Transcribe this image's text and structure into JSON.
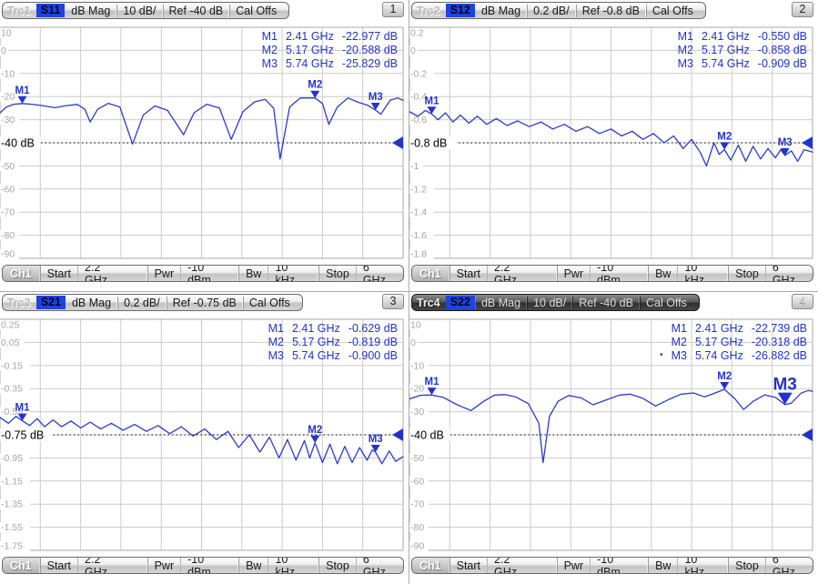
{
  "colors": {
    "accent": "#2233cc",
    "trace": "#2b3ace",
    "grid": "#cccccc",
    "grid_border": "#a8a8a8",
    "tick": "#a5a5a5",
    "ref": "#000000"
  },
  "panels": [
    {
      "number": "1",
      "header": {
        "trace": "Trc1",
        "sparam": "S11",
        "settings": [
          "dB Mag",
          "10 dB/",
          "Ref -40 dB",
          "Cal Offs"
        ],
        "active": false
      },
      "axis": {
        "xmin": 2.2,
        "xmax": 6.0,
        "ymax": 10,
        "ymin": -90,
        "yticks": [
          "10",
          "0",
          "-10",
          "-20",
          "-30",
          "-40",
          "-50",
          "-60",
          "-70",
          "-80",
          "-90"
        ],
        "ref_index": 5,
        "ref_label": "-40 dB"
      },
      "readout": [
        {
          "name": "M1",
          "freq": "2.41 GHz",
          "value": "-22.977 dB",
          "active": false
        },
        {
          "name": "M2",
          "freq": "5.17 GHz",
          "value": "-20.588 dB",
          "active": false
        },
        {
          "name": "M3",
          "freq": "5.74 GHz",
          "value": "-25.829 dB",
          "active": false
        }
      ],
      "markers": [
        {
          "name": "M1",
          "f": 2.41,
          "v": -22.977,
          "large": false
        },
        {
          "name": "M2",
          "f": 5.17,
          "v": -20.588,
          "large": false
        },
        {
          "name": "M3",
          "f": 5.74,
          "v": -25.829,
          "large": false
        }
      ],
      "trace_points": [
        [
          2.2,
          -27
        ],
        [
          2.26,
          -24.5
        ],
        [
          2.33,
          -23.3
        ],
        [
          2.41,
          -22.977
        ],
        [
          2.5,
          -23.3
        ],
        [
          2.6,
          -23.9
        ],
        [
          2.72,
          -24.8
        ],
        [
          2.82,
          -23.9
        ],
        [
          2.93,
          -23.4
        ],
        [
          3.0,
          -25.5
        ],
        [
          3.05,
          -31
        ],
        [
          3.12,
          -25.5
        ],
        [
          3.22,
          -22.9
        ],
        [
          3.33,
          -24.5
        ],
        [
          3.45,
          -40.5
        ],
        [
          3.55,
          -28
        ],
        [
          3.66,
          -24
        ],
        [
          3.78,
          -26
        ],
        [
          3.93,
          -36.5
        ],
        [
          4.03,
          -27
        ],
        [
          4.15,
          -23.3
        ],
        [
          4.27,
          -25
        ],
        [
          4.38,
          -38.5
        ],
        [
          4.49,
          -26.5
        ],
        [
          4.6,
          -22.3
        ],
        [
          4.7,
          -21.2
        ],
        [
          4.78,
          -25
        ],
        [
          4.84,
          -47
        ],
        [
          4.93,
          -24.5
        ],
        [
          5.03,
          -20.6
        ],
        [
          5.17,
          -20.588
        ],
        [
          5.24,
          -23
        ],
        [
          5.3,
          -32
        ],
        [
          5.38,
          -24.5
        ],
        [
          5.48,
          -20.6
        ],
        [
          5.58,
          -22.5
        ],
        [
          5.67,
          -23.8
        ],
        [
          5.74,
          -25.829
        ],
        [
          5.79,
          -27.6
        ],
        [
          5.88,
          -21.5
        ],
        [
          5.95,
          -20.6
        ],
        [
          6.0,
          -21.6
        ]
      ],
      "channel": {
        "name": "Ch1",
        "items": [
          [
            "Start",
            "2.2 GHz"
          ],
          [
            "Pwr",
            "-10 dBm"
          ],
          [
            "Bw",
            "10 kHz"
          ],
          [
            "Stop",
            "6 GHz"
          ]
        ]
      }
    },
    {
      "number": "2",
      "header": {
        "trace": "Trc2",
        "sparam": "S12",
        "settings": [
          "dB Mag",
          "0.2 dB/",
          "Ref -0.8 dB",
          "Cal Offs"
        ],
        "active": false
      },
      "axis": {
        "xmin": 2.2,
        "xmax": 6.0,
        "ymax": 0.2,
        "ymin": -1.8,
        "yticks": [
          "0.2",
          "0",
          "-0.2",
          "-0.4",
          "-0.6",
          "-0.8",
          "-1",
          "-1.2",
          "-1.4",
          "-1.6",
          "-1.8"
        ],
        "ref_index": 5,
        "ref_label": "-0.8 dB"
      },
      "readout": [
        {
          "name": "M1",
          "freq": "2.41 GHz",
          "value": "-0.550 dB",
          "active": false
        },
        {
          "name": "M2",
          "freq": "5.17 GHz",
          "value": "-0.858 dB",
          "active": false
        },
        {
          "name": "M3",
          "freq": "5.74 GHz",
          "value": "-0.909 dB",
          "active": false
        }
      ],
      "markers": [
        {
          "name": "M1",
          "f": 2.41,
          "v": -0.55,
          "large": false
        },
        {
          "name": "M2",
          "f": 5.17,
          "v": -0.858,
          "large": false
        },
        {
          "name": "M3",
          "f": 5.74,
          "v": -0.909,
          "large": false
        }
      ],
      "trace_points": [
        [
          2.2,
          -0.53
        ],
        [
          2.28,
          -0.57
        ],
        [
          2.35,
          -0.52
        ],
        [
          2.41,
          -0.55
        ],
        [
          2.47,
          -0.6
        ],
        [
          2.54,
          -0.54
        ],
        [
          2.61,
          -0.62
        ],
        [
          2.68,
          -0.56
        ],
        [
          2.76,
          -0.63
        ],
        [
          2.84,
          -0.57
        ],
        [
          2.93,
          -0.64
        ],
        [
          3.02,
          -0.59
        ],
        [
          3.12,
          -0.65
        ],
        [
          3.22,
          -0.61
        ],
        [
          3.33,
          -0.66
        ],
        [
          3.44,
          -0.62
        ],
        [
          3.55,
          -0.68
        ],
        [
          3.66,
          -0.64
        ],
        [
          3.77,
          -0.7
        ],
        [
          3.88,
          -0.66
        ],
        [
          3.99,
          -0.72
        ],
        [
          4.1,
          -0.68
        ],
        [
          4.2,
          -0.74
        ],
        [
          4.3,
          -0.7
        ],
        [
          4.4,
          -0.77
        ],
        [
          4.5,
          -0.72
        ],
        [
          4.6,
          -0.8
        ],
        [
          4.69,
          -0.74
        ],
        [
          4.78,
          -0.85
        ],
        [
          4.86,
          -0.77
        ],
        [
          4.94,
          -0.88
        ],
        [
          5.0,
          -1.0
        ],
        [
          5.07,
          -0.8
        ],
        [
          5.12,
          -0.9
        ],
        [
          5.17,
          -0.858
        ],
        [
          5.23,
          -0.95
        ],
        [
          5.3,
          -0.82
        ],
        [
          5.37,
          -0.96
        ],
        [
          5.44,
          -0.83
        ],
        [
          5.51,
          -0.94
        ],
        [
          5.58,
          -0.85
        ],
        [
          5.65,
          -0.93
        ],
        [
          5.7,
          -0.86
        ],
        [
          5.74,
          -0.909
        ],
        [
          5.8,
          -0.87
        ],
        [
          5.86,
          -0.96
        ],
        [
          5.92,
          -0.86
        ],
        [
          6.0,
          -0.88
        ]
      ],
      "channel": {
        "name": "Ch1",
        "items": [
          [
            "Start",
            "2.2 GHz"
          ],
          [
            "Pwr",
            "-10 dBm"
          ],
          [
            "Bw",
            "10 kHz"
          ],
          [
            "Stop",
            "6 GHz"
          ]
        ]
      }
    },
    {
      "number": "3",
      "header": {
        "trace": "Trc3",
        "sparam": "S21",
        "settings": [
          "dB Mag",
          "0.2 dB/",
          "Ref -0.75 dB",
          "Cal Offs"
        ],
        "active": false
      },
      "axis": {
        "xmin": 2.2,
        "xmax": 6.0,
        "ymax": 0.25,
        "ymin": -1.75,
        "yticks": [
          "0.25",
          "0.05",
          "-0.15",
          "-0.35",
          "-0.55",
          "-0.75",
          "-0.95",
          "-1.15",
          "-1.35",
          "-1.55",
          "-1.75"
        ],
        "ref_index": 5,
        "ref_label": "-0.75 dB"
      },
      "readout": [
        {
          "name": "M1",
          "freq": "2.41 GHz",
          "value": "-0.629 dB",
          "active": false
        },
        {
          "name": "M2",
          "freq": "5.17 GHz",
          "value": "-0.819 dB",
          "active": false
        },
        {
          "name": "M3",
          "freq": "5.74 GHz",
          "value": "-0.900 dB",
          "active": false
        }
      ],
      "markers": [
        {
          "name": "M1",
          "f": 2.41,
          "v": -0.629,
          "large": false
        },
        {
          "name": "M2",
          "f": 5.17,
          "v": -0.819,
          "large": false
        },
        {
          "name": "M3",
          "f": 5.74,
          "v": -0.9,
          "large": false
        }
      ],
      "trace_points": [
        [
          2.2,
          -0.6
        ],
        [
          2.28,
          -0.65
        ],
        [
          2.35,
          -0.59
        ],
        [
          2.41,
          -0.629
        ],
        [
          2.48,
          -0.67
        ],
        [
          2.55,
          -0.61
        ],
        [
          2.62,
          -0.68
        ],
        [
          2.7,
          -0.62
        ],
        [
          2.78,
          -0.68
        ],
        [
          2.87,
          -0.63
        ],
        [
          2.96,
          -0.69
        ],
        [
          3.05,
          -0.64
        ],
        [
          3.15,
          -0.7
        ],
        [
          3.25,
          -0.65
        ],
        [
          3.36,
          -0.71
        ],
        [
          3.47,
          -0.66
        ],
        [
          3.58,
          -0.72
        ],
        [
          3.69,
          -0.67
        ],
        [
          3.8,
          -0.74
        ],
        [
          3.91,
          -0.68
        ],
        [
          4.02,
          -0.76
        ],
        [
          4.13,
          -0.7
        ],
        [
          4.24,
          -0.79
        ],
        [
          4.35,
          -0.72
        ],
        [
          4.45,
          -0.86
        ],
        [
          4.55,
          -0.75
        ],
        [
          4.65,
          -0.9
        ],
        [
          4.74,
          -0.77
        ],
        [
          4.83,
          -0.95
        ],
        [
          4.91,
          -0.79
        ],
        [
          4.99,
          -0.97
        ],
        [
          5.07,
          -0.8
        ],
        [
          5.12,
          -0.95
        ],
        [
          5.17,
          -0.819
        ],
        [
          5.24,
          -0.99
        ],
        [
          5.31,
          -0.83
        ],
        [
          5.38,
          -1.0
        ],
        [
          5.45,
          -0.85
        ],
        [
          5.52,
          -0.99
        ],
        [
          5.59,
          -0.86
        ],
        [
          5.66,
          -0.97
        ],
        [
          5.71,
          -0.88
        ],
        [
          5.74,
          -0.9
        ],
        [
          5.8,
          -1.0
        ],
        [
          5.87,
          -0.89
        ],
        [
          5.93,
          -0.98
        ],
        [
          6.0,
          -0.94
        ]
      ],
      "channel": {
        "name": "Ch1",
        "items": [
          [
            "Start",
            "2.2 GHz"
          ],
          [
            "Pwr",
            "-10 dBm"
          ],
          [
            "Bw",
            "10 kHz"
          ],
          [
            "Stop",
            "6 GHz"
          ]
        ]
      }
    },
    {
      "number": "4",
      "header": {
        "trace": "Trc4",
        "sparam": "S22",
        "settings": [
          "dB Mag",
          "10 dB/",
          "Ref -40 dB",
          "Cal Offs"
        ],
        "active": true
      },
      "axis": {
        "xmin": 2.2,
        "xmax": 6.0,
        "ymax": 10,
        "ymin": -90,
        "yticks": [
          "10",
          "0",
          "-10",
          "-20",
          "-30",
          "-40",
          "-50",
          "-60",
          "-70",
          "-80",
          "-90"
        ],
        "ref_index": 5,
        "ref_label": "-40 dB"
      },
      "readout": [
        {
          "name": "M1",
          "freq": "2.41 GHz",
          "value": "-22.739 dB",
          "active": false
        },
        {
          "name": "M2",
          "freq": "5.17 GHz",
          "value": "-20.318 dB",
          "active": false
        },
        {
          "name": "M3",
          "freq": "5.74 GHz",
          "value": "-26.882 dB",
          "active": true
        }
      ],
      "markers": [
        {
          "name": "M1",
          "f": 2.41,
          "v": -22.739,
          "large": false
        },
        {
          "name": "M2",
          "f": 5.17,
          "v": -20.318,
          "large": false
        },
        {
          "name": "M3",
          "f": 5.74,
          "v": -26.882,
          "large": true
        }
      ],
      "trace_points": [
        [
          2.2,
          -24.5
        ],
        [
          2.3,
          -22.9
        ],
        [
          2.41,
          -22.739
        ],
        [
          2.52,
          -23.8
        ],
        [
          2.65,
          -27
        ],
        [
          2.78,
          -29.5
        ],
        [
          2.9,
          -25.5
        ],
        [
          3.0,
          -22.8
        ],
        [
          3.1,
          -22.6
        ],
        [
          3.2,
          -23.6
        ],
        [
          3.32,
          -26.5
        ],
        [
          3.42,
          -35
        ],
        [
          3.46,
          -52
        ],
        [
          3.52,
          -32
        ],
        [
          3.6,
          -25.5
        ],
        [
          3.7,
          -23
        ],
        [
          3.82,
          -24
        ],
        [
          3.93,
          -27
        ],
        [
          4.05,
          -25
        ],
        [
          4.18,
          -22.8
        ],
        [
          4.28,
          -22.4
        ],
        [
          4.4,
          -24.2
        ],
        [
          4.52,
          -27.5
        ],
        [
          4.64,
          -24.8
        ],
        [
          4.76,
          -22.4
        ],
        [
          4.88,
          -21.9
        ],
        [
          4.98,
          -23.6
        ],
        [
          5.06,
          -22.3
        ],
        [
          5.17,
          -20.318
        ],
        [
          5.27,
          -24.5
        ],
        [
          5.35,
          -29
        ],
        [
          5.44,
          -25.5
        ],
        [
          5.55,
          -22.7
        ],
        [
          5.65,
          -23.8
        ],
        [
          5.74,
          -26.882
        ],
        [
          5.8,
          -26.3
        ],
        [
          5.89,
          -22
        ],
        [
          5.96,
          -20.8
        ],
        [
          6.0,
          -21.2
        ]
      ],
      "channel": {
        "name": "Ch1",
        "items": [
          [
            "Start",
            "2.2 GHz"
          ],
          [
            "Pwr",
            "-10 dBm"
          ],
          [
            "Bw",
            "10 kHz"
          ],
          [
            "Stop",
            "6 GHz"
          ]
        ]
      }
    }
  ]
}
